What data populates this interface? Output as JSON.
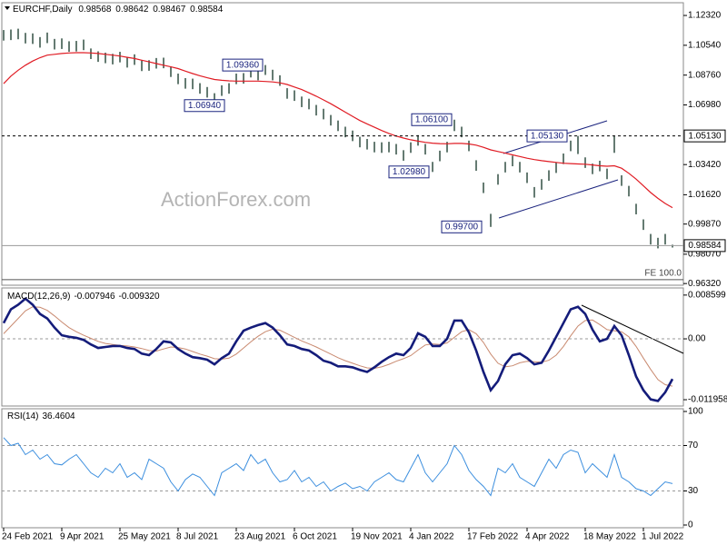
{
  "header": {
    "symbol": "EURCHF,Daily",
    "ohlc": [
      0.98568,
      0.98642,
      0.98467,
      0.98584
    ]
  },
  "watermark": "ActionForex.com",
  "chart_data": [
    {
      "type": "ohlc",
      "bar_color": "#3e5a4e",
      "high": [
        1.1145,
        1.1148,
        1.1153,
        1.1128,
        1.1125,
        1.1103,
        1.113,
        1.1092,
        1.1095,
        1.1078,
        1.108,
        1.1088,
        1.1035,
        1.1018,
        1.101,
        1.1003,
        1.1015,
        1.0984,
        1.1,
        1.0963,
        1.0965,
        1.0978,
        1.098,
        1.0928,
        1.0885,
        1.0858,
        1.0855,
        1.0828,
        1.0805,
        1.0768,
        1.0815,
        1.0828,
        1.0885,
        1.0888,
        1.0925,
        1.0908,
        1.0936,
        1.0908,
        1.0875,
        1.0798,
        1.0785,
        1.0748,
        1.0735,
        1.0698,
        1.0675,
        1.0638,
        1.0605,
        1.0568,
        1.0545,
        1.0508,
        1.0495,
        1.0478,
        1.0475,
        1.0478,
        1.0465,
        1.0428,
        1.0475,
        1.0518,
        1.0465,
        1.0358,
        1.0425,
        1.0478,
        1.061,
        1.0568,
        1.0485,
        1.0368,
        1.0235,
        1.0048,
        1.0285,
        1.0358,
        1.0395,
        1.0358,
        1.0295,
        1.0208,
        1.0255,
        1.0308,
        1.0355,
        1.0408,
        1.0485,
        1.0513,
        1.0385,
        1.0348,
        1.0365,
        1.0318,
        1.0513,
        1.0278,
        1.0215,
        1.0108,
        1.0015,
        0.9928,
        0.9905,
        0.9928,
        0.9864
      ],
      "low": [
        1.1082,
        1.1085,
        1.109,
        1.1065,
        1.1062,
        1.104,
        1.1067,
        1.1029,
        1.1032,
        1.1015,
        1.1017,
        1.1025,
        1.0972,
        1.0955,
        1.0947,
        1.094,
        1.0952,
        1.0921,
        1.0937,
        1.09,
        1.0902,
        1.0915,
        1.0917,
        1.0865,
        1.0822,
        1.0795,
        1.0792,
        1.0765,
        1.0742,
        1.0694,
        1.0752,
        1.0765,
        1.0822,
        1.0825,
        1.0862,
        1.0845,
        1.0877,
        1.0845,
        1.0812,
        1.0735,
        1.0722,
        1.0685,
        1.0672,
        1.0635,
        1.0612,
        1.0575,
        1.0542,
        1.0505,
        1.0482,
        1.0445,
        1.0432,
        1.0415,
        1.0412,
        1.0415,
        1.0402,
        1.0365,
        1.0412,
        1.0455,
        1.0402,
        1.0298,
        1.0362,
        1.0415,
        1.0542,
        1.0505,
        1.0422,
        1.0305,
        1.0172,
        0.997,
        1.0222,
        1.0295,
        1.0332,
        1.0295,
        1.0232,
        1.0145,
        1.0192,
        1.0245,
        1.0292,
        1.0345,
        1.0422,
        1.0405,
        1.0322,
        1.0285,
        1.0302,
        1.0255,
        1.0412,
        1.0215,
        1.0152,
        1.0045,
        0.9952,
        0.9865,
        0.9842,
        0.9865,
        0.9847
      ],
      "ma": {
        "color": "#e01c24",
        "values": [
          1.0825,
          1.087,
          1.0905,
          1.0935,
          1.096,
          1.098,
          1.0995,
          1.1,
          1.1005,
          1.1008,
          1.101,
          1.101,
          1.1008,
          1.1005,
          1.1,
          1.0995,
          1.099,
          1.0982,
          1.0975,
          1.0965,
          1.0955,
          1.0945,
          1.0935,
          1.0925,
          1.0915,
          1.09,
          1.0885,
          1.0872,
          1.086,
          1.085,
          1.0845,
          1.0842,
          1.084,
          1.084,
          1.084,
          1.084,
          1.0838,
          1.0835,
          1.083,
          1.082,
          1.0805,
          1.079,
          1.077,
          1.075,
          1.0728,
          1.0705,
          1.068,
          1.0655,
          1.063,
          1.0605,
          1.0585,
          1.0565,
          1.0545,
          1.0528,
          1.0512,
          1.05,
          1.049,
          1.0482,
          1.0475,
          1.047,
          1.0467,
          1.0466,
          1.0468,
          1.0468,
          1.0465,
          1.0458,
          1.0445,
          1.043,
          1.042,
          1.041,
          1.04,
          1.039,
          1.038,
          1.0372,
          1.0365,
          1.036,
          1.0355,
          1.035,
          1.0348,
          1.0346,
          1.0344,
          1.034,
          1.0335,
          1.0332,
          1.0335,
          1.032,
          1.029,
          1.0255,
          1.0215,
          1.0175,
          1.014,
          1.011,
          1.0085
        ]
      },
      "xlim": [
        -0.25,
        93.5
      ],
      "xticks": [
        {
          "value": 0,
          "label": "24 Feb 2021"
        },
        {
          "value": 8,
          "label": "9 Apr 2021"
        },
        {
          "value": 16,
          "label": "25 May 2021"
        },
        {
          "value": 24,
          "label": "8 Jul 2021"
        },
        {
          "value": 32,
          "label": "23 Aug 2021"
        },
        {
          "value": 40,
          "label": "6 Oct 2021"
        },
        {
          "value": 48,
          "label": "19 Nov 2021"
        },
        {
          "value": 56,
          "label": "4 Jan 2022"
        },
        {
          "value": 64,
          "label": "17 Feb 2022"
        },
        {
          "value": 72,
          "label": "4 Apr 2022"
        },
        {
          "value": 80,
          "label": "18 May 2022"
        },
        {
          "value": 88,
          "label": "1 Jul 2022"
        }
      ],
      "ylim": [
        0.9622,
        1.1308
      ],
      "yticks": [
        {
          "value": 1.1232,
          "label": "1.12320"
        },
        {
          "value": 1.1054,
          "label": "1.10540"
        },
        {
          "value": 1.0876,
          "label": "1.08760"
        },
        {
          "value": 1.0698,
          "label": "1.06980"
        },
        {
          "value": 1.0342,
          "label": "1.03420"
        },
        {
          "value": 1.0162,
          "label": "1.01620"
        },
        {
          "value": 0.9987,
          "label": "0.99870"
        },
        {
          "value": 0.9807,
          "label": "0.98070"
        },
        {
          "value": 0.9632,
          "label": "0.96320"
        }
      ],
      "last_price": 0.98584,
      "level": {
        "value": 1.0513,
        "label": "1.05130"
      },
      "annotations": [
        {
          "value": 1.0936,
          "label": "1.09360"
        },
        {
          "value": 1.0694,
          "label": "1.06940"
        },
        {
          "value": 1.061,
          "label": "1.06100"
        },
        {
          "value": 1.0298,
          "label": "1.02980"
        },
        {
          "value": 1.0513,
          "label": "1.05130"
        },
        {
          "value": 0.997,
          "label": "0.99700"
        }
      ],
      "fe_line": {
        "value": 0.9655,
        "label": "FE 100.0"
      }
    },
    {
      "type": "macd",
      "title": "MACD(12,26,9)",
      "last": [
        -0.007946,
        {
          "value": -0.00932,
          "label": "-0.009320"
        }
      ],
      "series": [
        {
          "color": "#141c7a",
          "values": [
            0.0031,
            0.0058,
            0.0067,
            0.0079,
            0.0067,
            0.0049,
            0.004,
            0.0022,
            0.0007,
            0.0004,
            0.0002,
            -0.0002,
            -0.0011,
            -0.0018,
            -0.0016,
            -0.0014,
            -0.0014,
            -0.0018,
            -0.002,
            -0.0029,
            -0.0032,
            -0.002,
            -0.0005,
            -0.0007,
            -0.002,
            -0.0029,
            -0.0036,
            -0.0038,
            -0.0041,
            -0.005,
            -0.0038,
            -0.0029,
            -0.0005,
            0.0016,
            0.0022,
            0.0027,
            0.0031,
            0.0022,
            0.0007,
            -0.0011,
            -0.0014,
            -0.002,
            -0.0023,
            -0.0032,
            -0.0043,
            -0.0047,
            -0.0054,
            -0.0054,
            -0.0056,
            -0.0061,
            -0.0065,
            -0.0056,
            -0.0045,
            -0.0036,
            -0.0029,
            -0.0032,
            -0.0018,
            0.0011,
            0.0004,
            -0.0014,
            -0.0014,
            0.0,
            0.0036,
            0.0036,
            0.0013,
            -0.0023,
            -0.0065,
            -0.0101,
            -0.0083,
            -0.005,
            -0.0032,
            -0.0029,
            -0.0038,
            -0.005,
            -0.0047,
            -0.0023,
            0.0004,
            0.0031,
            0.0058,
            0.0063,
            0.0049,
            0.0018,
            -0.0005,
            0.0,
            0.0025,
            0.0007,
            -0.0032,
            -0.0074,
            -0.0101,
            -0.0119,
            -0.0122,
            -0.0105,
            -0.0079
          ]
        },
        {
          "color": "#c98a70",
          "values": [
            0.001,
            0.0025,
            0.004,
            0.0055,
            0.0063,
            0.0062,
            0.0056,
            0.0045,
            0.0033,
            0.0022,
            0.0014,
            0.0007,
            0.0001,
            -0.0005,
            -0.0009,
            -0.0011,
            -0.0013,
            -0.0014,
            -0.0016,
            -0.0019,
            -0.0023,
            -0.0024,
            -0.002,
            -0.0016,
            -0.0017,
            -0.002,
            -0.0025,
            -0.003,
            -0.0034,
            -0.0039,
            -0.004,
            -0.0038,
            -0.003,
            -0.0018,
            -0.0006,
            0.0005,
            0.0014,
            0.0019,
            0.0017,
            0.001,
            0.0003,
            -0.0004,
            -0.001,
            -0.0016,
            -0.0023,
            -0.003,
            -0.0037,
            -0.0043,
            -0.0048,
            -0.0053,
            -0.0057,
            -0.0058,
            -0.0055,
            -0.005,
            -0.0044,
            -0.0039,
            -0.0033,
            -0.0022,
            -0.0012,
            -0.001,
            -0.0011,
            -0.0008,
            0.0003,
            0.0014,
            0.0018,
            0.001,
            -0.0007,
            -0.003,
            -0.0048,
            -0.0055,
            -0.0053,
            -0.0047,
            -0.0044,
            -0.0045,
            -0.0046,
            -0.0042,
            -0.0032,
            -0.0015,
            0.0006,
            0.0025,
            0.0036,
            0.0037,
            0.0028,
            0.0018,
            0.0016,
            0.0014,
            0.0004,
            -0.0015,
            -0.0038,
            -0.006,
            -0.008,
            -0.009,
            -0.0093
          ]
        }
      ],
      "ylim": [
        -0.0132,
        0.01
      ],
      "yticks": [
        0.008599,
        {
          "value": 0,
          "label": "0.00"
        },
        -0.011958
      ],
      "levels": [
        0
      ]
    },
    {
      "type": "rsi",
      "title": "RSI(14)",
      "last": 36.4604,
      "color": "#3b8ede",
      "values": [
        77,
        70,
        72,
        62,
        66,
        58,
        62,
        54,
        53,
        58,
        62,
        54,
        46,
        42,
        50,
        46,
        54,
        42,
        46,
        40,
        58,
        54,
        50,
        38,
        30,
        40,
        45,
        42,
        34,
        26,
        46,
        50,
        54,
        48,
        62,
        54,
        58,
        46,
        38,
        40,
        48,
        38,
        42,
        34,
        38,
        30,
        34,
        37,
        32,
        34,
        30,
        38,
        42,
        46,
        40,
        38,
        50,
        62,
        46,
        38,
        46,
        54,
        70,
        62,
        48,
        40,
        34,
        26,
        50,
        46,
        54,
        42,
        38,
        34,
        46,
        58,
        50,
        62,
        66,
        64,
        46,
        54,
        48,
        42,
        62,
        42,
        38,
        32,
        30,
        26,
        32,
        38,
        36.4604
      ],
      "ylim": [
        -2.4,
        102.4
      ],
      "yticks": [
        100,
        70,
        30,
        0
      ],
      "levels": [
        70,
        30
      ]
    }
  ]
}
